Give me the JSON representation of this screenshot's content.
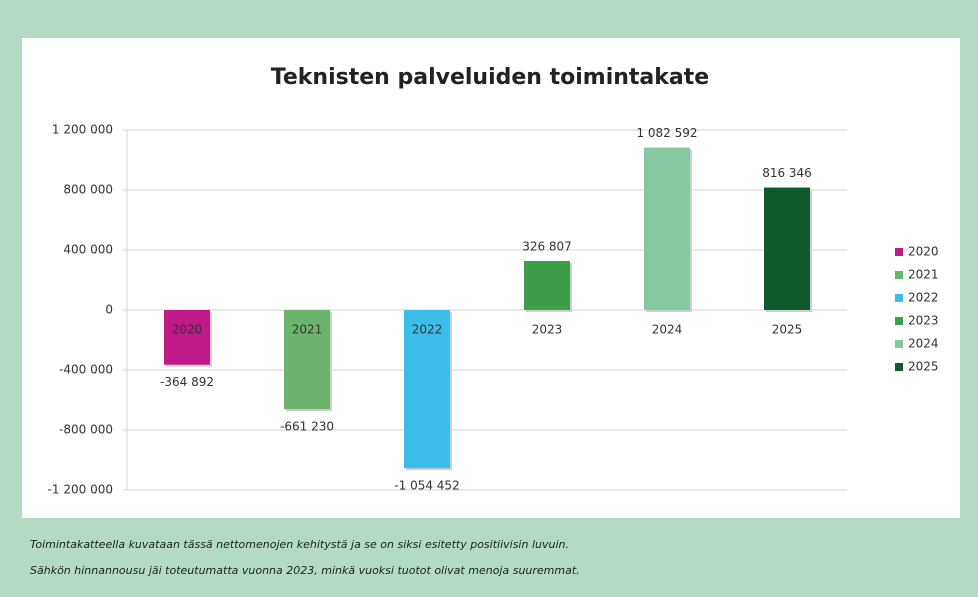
{
  "chart_data": {
    "type": "bar",
    "title": "Teknisten palveluiden toimintakate",
    "categories": [
      "2020",
      "2021",
      "2022",
      "2023",
      "2024",
      "2025"
    ],
    "values": [
      -364892,
      -661230,
      -1054452,
      326807,
      1082592,
      816346
    ],
    "value_labels": [
      "-364 892",
      "-661 230",
      "-1 054 452",
      "326 807",
      "1 082 592",
      "816 346"
    ],
    "colors": [
      "#c0198a",
      "#6cb46c",
      "#3bbde9",
      "#3d9d48",
      "#86c9a0",
      "#0e5a2c"
    ],
    "ylim": [
      -1200000,
      1200000
    ],
    "yticks": [
      {
        "value": -1200000,
        "label": "-1 200 000"
      },
      {
        "value": -800000,
        "label": "-800 000"
      },
      {
        "value": -400000,
        "label": "-400 000"
      },
      0,
      {
        "value": 400000,
        "label": "400 000"
      },
      {
        "value": 800000,
        "label": "800 000"
      },
      {
        "value": 1200000,
        "label": "1 200 000"
      }
    ],
    "grid": true,
    "legend": "right"
  },
  "footnotes": [
    "Toimintakatteella kuvataan tässä nettomenojen kehitystä ja se on siksi esitetty positiivisin luvuin.",
    "Sähkön hinnannousu jäi toteutumatta vuonna 2023, minkä vuoksi tuotot olivat menoja suuremmat."
  ]
}
